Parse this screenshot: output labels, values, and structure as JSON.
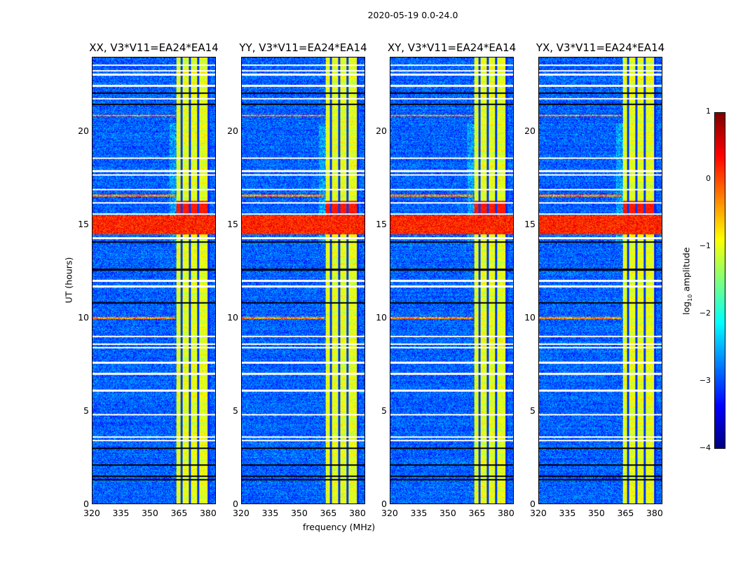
{
  "chart_data": {
    "type": "heatmap",
    "title": "2020-05-19 0.0-24.0",
    "panels": [
      {
        "title": "XX, V3*V11=EA24*EA14",
        "seed": 1
      },
      {
        "title": "YY, V3*V11=EA24*EA14",
        "seed": 2
      },
      {
        "title": "XY, V3*V11=EA24*EA14",
        "seed": 3
      },
      {
        "title": "YX, V3*V11=EA24*EA14",
        "seed": 4
      }
    ],
    "xlabel": "frequency (MHz)",
    "ylabel": "UT (hours)",
    "xlim": [
      320,
      384
    ],
    "ylim": [
      0,
      24
    ],
    "xticks": [
      "320",
      "335",
      "350",
      "365",
      "380"
    ],
    "xtick_values": [
      320,
      335,
      350,
      365,
      380
    ],
    "yticks": [
      "0",
      "5",
      "10",
      "15",
      "20"
    ],
    "ytick_values": [
      0,
      5,
      10,
      15,
      20
    ],
    "colorbar": {
      "label": "log10 amplitude",
      "label_main": "log",
      "label_sub": "10",
      "label_rest": " amplitude",
      "colormap": "jet",
      "range": [
        -4,
        1
      ],
      "ticks": [
        "1",
        "0",
        "−1",
        "−2",
        "−3",
        "−4"
      ],
      "tick_values": [
        1,
        0,
        -1,
        -2,
        -3,
        -4
      ]
    },
    "features": {
      "background_level": -2.9,
      "rfi_band_mhz": [
        363.5,
        380
      ],
      "rfi_band_level": -1.0,
      "band_gaps_mhz": [
        366.3,
        370.6,
        375.0
      ],
      "strong_rfi_hours": [
        14.5,
        15.5
      ],
      "flagged_white_hours": [
        23.6,
        23.3,
        23.1,
        22.5,
        21.8,
        18.6,
        17.9,
        17.7,
        16.9,
        16.2,
        15.6,
        14.3,
        12.0,
        11.7,
        9.0,
        8.6,
        8.4,
        7.6,
        7.0,
        6.1,
        4.8,
        3.6,
        3.4
      ],
      "flagged_black_hours": [
        22.1,
        21.5,
        14.1,
        12.6,
        10.8,
        3.0,
        2.1,
        1.5,
        1.3
      ],
      "narrow_rfi_hours": [
        20.9,
        16.6,
        10.0
      ]
    }
  }
}
